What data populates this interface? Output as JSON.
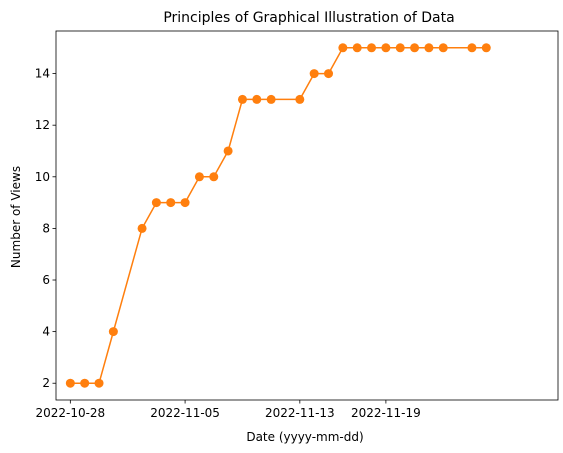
{
  "chart_data": {
    "type": "line",
    "title": "Principles of Graphical Illustration of Data",
    "xlabel": "Date (yyyy-mm-dd)",
    "ylabel": "Number of Views",
    "x_tick_labels": [
      "2022-10-28",
      "2022-11-05",
      "2022-11-13",
      "2022-11-19"
    ],
    "y_tick_labels": [
      "2",
      "4",
      "6",
      "8",
      "10",
      "12",
      "14"
    ],
    "xlim": [
      "2022-10-27",
      "2022-12-01"
    ],
    "ylim": [
      1.35,
      15.65
    ],
    "grid": false,
    "legend": "none",
    "line_color": "#ff7f0e",
    "series": [
      {
        "values": [
          {
            "x": "2022-10-28",
            "y": 2
          },
          {
            "x": "2022-10-29",
            "y": 2
          },
          {
            "x": "2022-10-30",
            "y": 2
          },
          {
            "x": "2022-10-31",
            "y": 4
          },
          {
            "x": "2022-11-02",
            "y": 8
          },
          {
            "x": "2022-11-03",
            "y": 9
          },
          {
            "x": "2022-11-04",
            "y": 9
          },
          {
            "x": "2022-11-05",
            "y": 9
          },
          {
            "x": "2022-11-06",
            "y": 10
          },
          {
            "x": "2022-11-07",
            "y": 10
          },
          {
            "x": "2022-11-08",
            "y": 11
          },
          {
            "x": "2022-11-09",
            "y": 13
          },
          {
            "x": "2022-11-10",
            "y": 13
          },
          {
            "x": "2022-11-11",
            "y": 13
          },
          {
            "x": "2022-11-13",
            "y": 13
          },
          {
            "x": "2022-11-14",
            "y": 14
          },
          {
            "x": "2022-11-15",
            "y": 14
          },
          {
            "x": "2022-11-16",
            "y": 15
          },
          {
            "x": "2022-11-17",
            "y": 15
          },
          {
            "x": "2022-11-18",
            "y": 15
          },
          {
            "x": "2022-11-19",
            "y": 15
          },
          {
            "x": "2022-11-20",
            "y": 15
          },
          {
            "x": "2022-11-21",
            "y": 15
          },
          {
            "x": "2022-11-22",
            "y": 15
          },
          {
            "x": "2022-11-23",
            "y": 15
          },
          {
            "x": "2022-11-25",
            "y": 15
          },
          {
            "x": "2022-11-26",
            "y": 15
          }
        ]
      }
    ]
  }
}
